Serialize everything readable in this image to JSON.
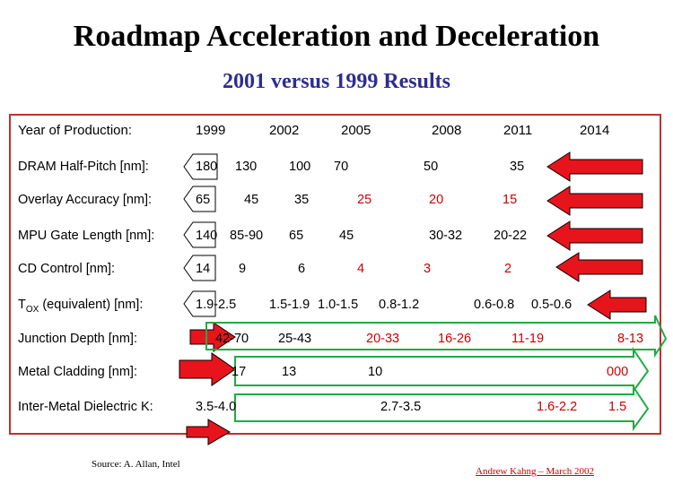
{
  "title": "Roadmap Acceleration and Deceleration",
  "subtitle": "2001 versus 1999 Results",
  "year_label": "Year of Production:",
  "years": [
    "1999",
    "2002",
    "2005",
    "2008",
    "2011",
    "2014"
  ],
  "rows": [
    {
      "label": "DRAM Half-Pitch [nm]:",
      "values": [
        "180",
        "130",
        "100",
        "70",
        "50",
        "35"
      ]
    },
    {
      "label": "Overlay Accuracy [nm]:",
      "values": [
        "65",
        "45",
        "35",
        "25",
        "20",
        "15"
      ]
    },
    {
      "label": "MPU Gate Length [nm]:",
      "values": [
        "140",
        "85-90",
        "65",
        "45",
        "30-32",
        "20-22"
      ]
    },
    {
      "label": "CD Control [nm]:",
      "values": [
        "14",
        "9",
        "6",
        "4",
        "3",
        "2"
      ]
    },
    {
      "label_main": "T",
      "label_sub": "OX",
      "label_rest": " (equivalent) [nm]:",
      "values": [
        "1.9-2.5",
        "1.5-1.9",
        "1.0-1.5",
        "0.8-1.2",
        "0.6-0.8",
        "0.5-0.6"
      ]
    },
    {
      "label": "Junction Depth [nm]:",
      "values": [
        "42-70",
        "25-43",
        "20-33",
        "16-26",
        "11-19",
        "8-13"
      ]
    },
    {
      "label": "Metal Cladding [nm]:",
      "values": [
        "17",
        "13",
        "10",
        "000"
      ]
    },
    {
      "label": "Inter-Metal Dielectric K:",
      "values": [
        "3.5-4.0",
        "2.7-3.5",
        "1.6-2.2",
        "1.5"
      ]
    }
  ],
  "source": "Source:  A. Allan, Intel",
  "author": "Andrew Kahng – March 2002",
  "colors": {
    "red_arrow": "#e8141c",
    "green_arrow": "#22aa44",
    "frame": "#c03030",
    "subtitle": "#2d2d8f"
  }
}
